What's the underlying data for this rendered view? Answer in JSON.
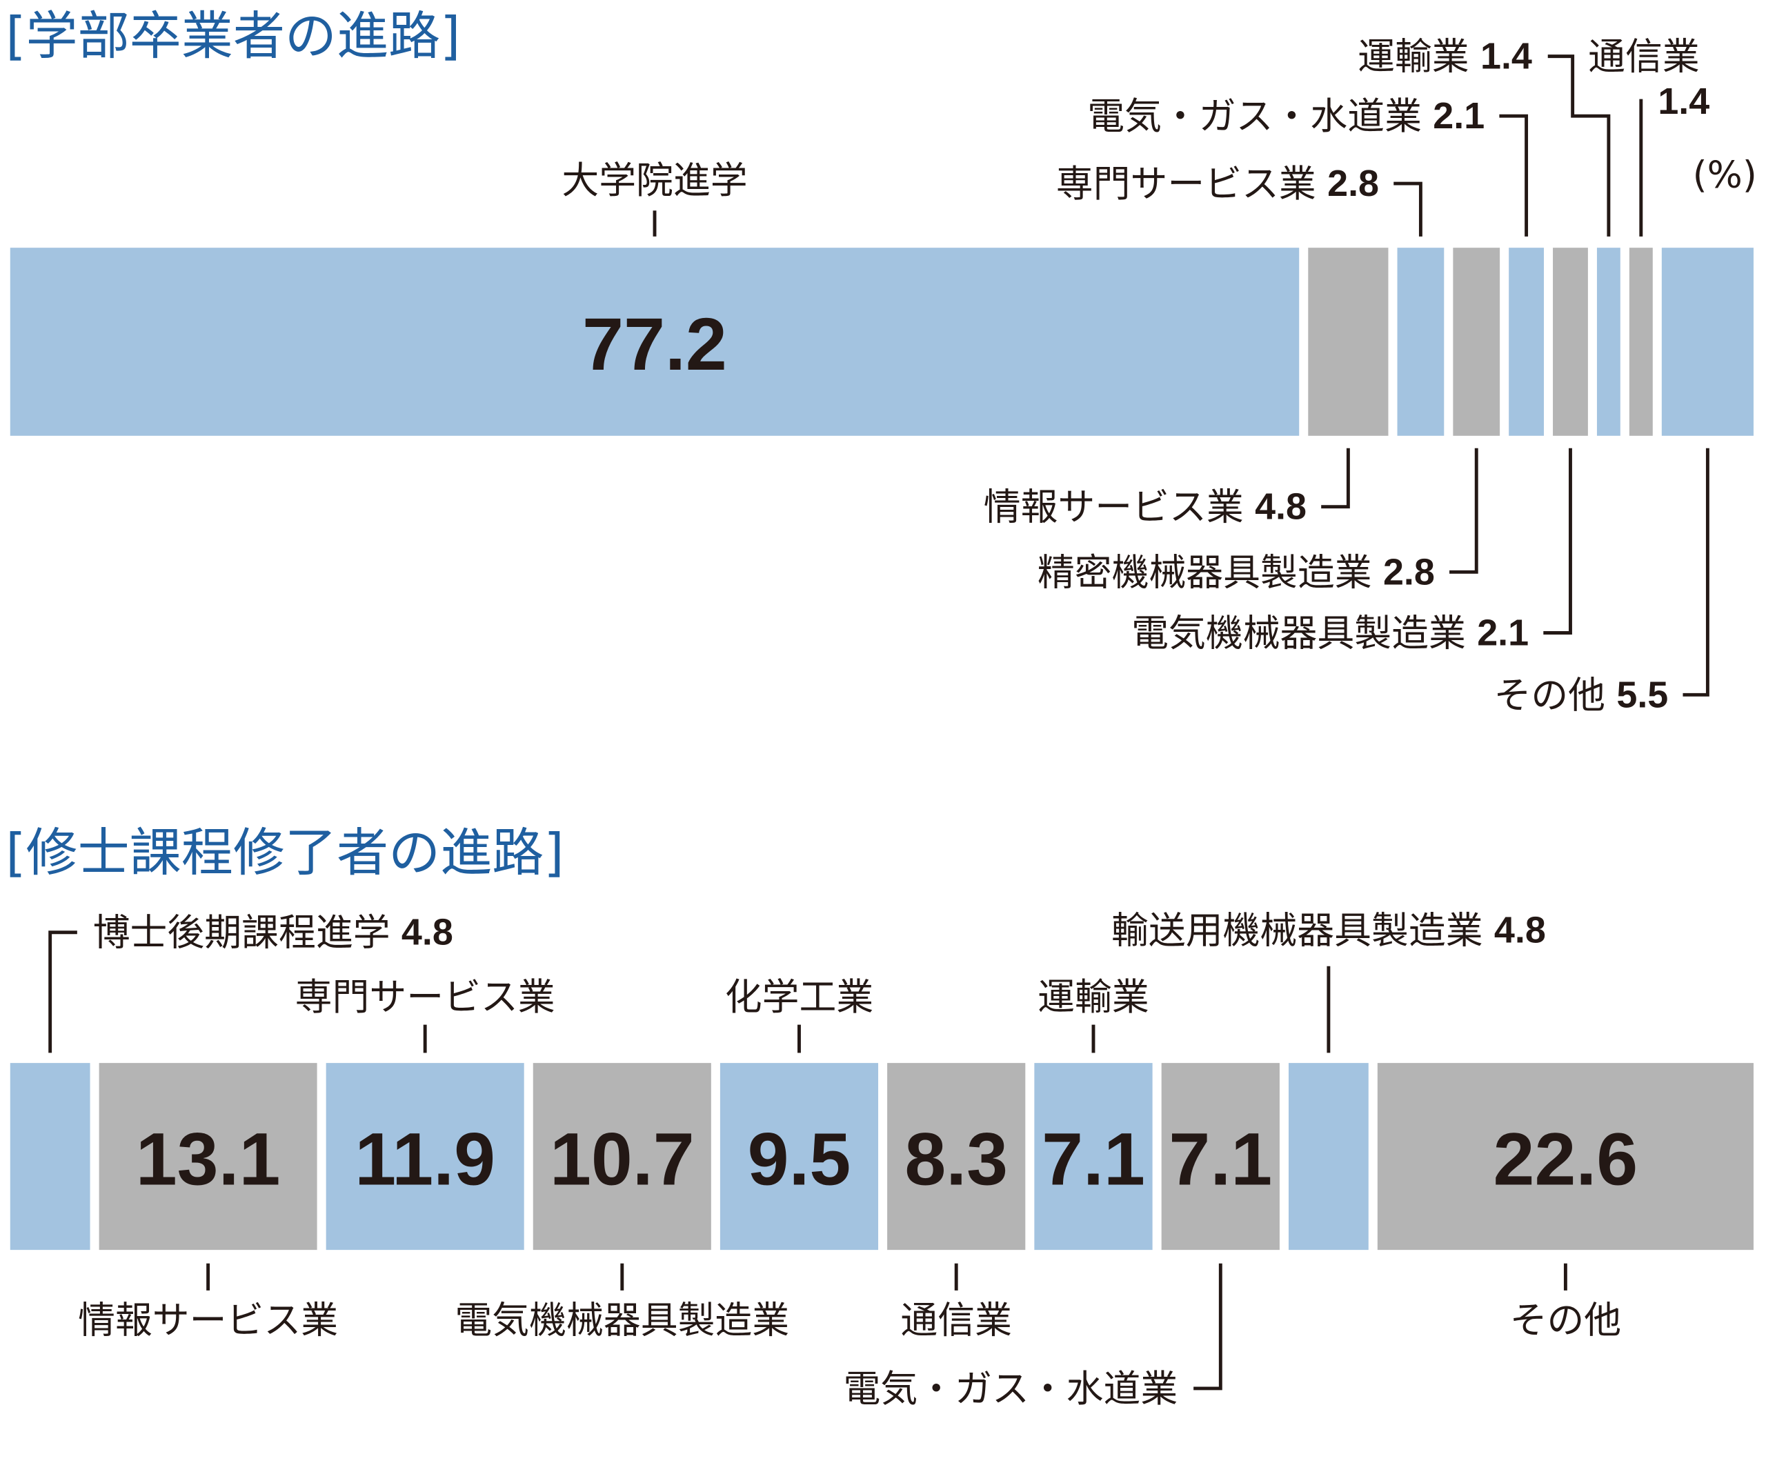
{
  "chart_data": [
    {
      "type": "bar",
      "title": "[学部卒業者の進路]",
      "unit": "(%)",
      "categories": [
        "大学院進学",
        "情報サービス業",
        "専門サービス業",
        "精密機械器具製造業",
        "電気・ガス・水道業",
        "電気機械器具製造業",
        "運輸業",
        "通信業",
        "その他"
      ],
      "values": [
        77.2,
        4.8,
        2.8,
        2.8,
        2.1,
        2.1,
        1.4,
        1.4,
        5.5
      ],
      "colors": [
        "#a3c3e0",
        "#b4b4b4",
        "#a3c3e0",
        "#b4b4b4",
        "#a3c3e0",
        "#b4b4b4",
        "#a3c3e0",
        "#b4b4b4",
        "#a3c3e0"
      ]
    },
    {
      "type": "bar",
      "title": "[修士課程修了者の進路]",
      "categories": [
        "博士後期課程進学",
        "情報サービス業",
        "専門サービス業",
        "電気機械器具製造業",
        "化学工業",
        "通信業",
        "運輸業",
        "電気・ガス・水道業",
        "輸送用機械器具製造業",
        "その他"
      ],
      "values": [
        4.8,
        13.1,
        11.9,
        10.7,
        9.5,
        8.3,
        7.1,
        7.1,
        4.8,
        22.6
      ],
      "colors": [
        "#a3c3e0",
        "#b4b4b4",
        "#a3c3e0",
        "#b4b4b4",
        "#a3c3e0",
        "#b4b4b4",
        "#a3c3e0",
        "#b4b4b4",
        "#a3c3e0",
        "#b4b4b4"
      ]
    }
  ]
}
